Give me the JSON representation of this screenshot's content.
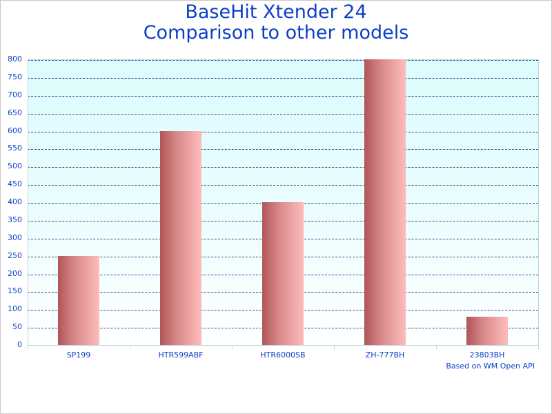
{
  "title": {
    "line1": "BaseHit Xtender 24",
    "line2": "Comparison to other models"
  },
  "credit": "Based on WM Open API",
  "colors": {
    "title": "#0c3fc8",
    "bar_dark": "#b05558",
    "bar_light": "#ffbcbc",
    "plot_bg_top": "#dcfcfd",
    "gridline": "#2a4a90"
  },
  "y_ticks": [
    "0",
    "50",
    "100",
    "150",
    "200",
    "250",
    "300",
    "350",
    "400",
    "450",
    "500",
    "550",
    "600",
    "650",
    "700",
    "750",
    "800"
  ],
  "x_labels": [
    "SP199",
    "HTR599ABF",
    "HTR6000SB",
    "ZH-777BH",
    "23803BH"
  ],
  "chart_data": {
    "type": "bar",
    "title": "BaseHit Xtender 24 Comparison to other models",
    "categories": [
      "SP199",
      "HTR599ABF",
      "HTR6000SB",
      "ZH-777BH",
      "23803BH"
    ],
    "values": [
      250,
      600,
      400,
      800,
      80
    ],
    "xlabel": "",
    "ylabel": "",
    "ylim": [
      0,
      800
    ],
    "ytick_step": 50,
    "grid": true,
    "legend": null,
    "annotations": [
      "Based on WM Open API"
    ]
  }
}
